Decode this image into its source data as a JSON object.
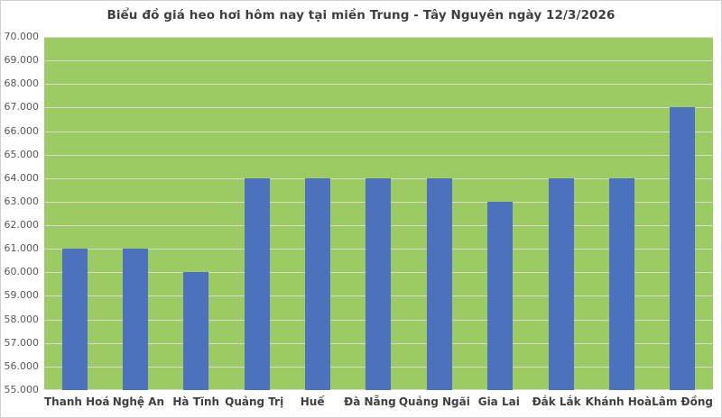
{
  "title": "Biểu đồ giá heo hơi hôm nay tại miền Trung - Tây Nguyên ngày 12/3/2026",
  "colors": {
    "bar": "#4C72BE",
    "plot_background": "#9CCB63",
    "gridline": "#d6ddc9",
    "title_text": "#3f3f3f",
    "y_axis_text": "#595959",
    "x_axis_text": "#404040",
    "frame_border": "#cfcfcf"
  },
  "chart_data": {
    "type": "bar",
    "title": "Biểu đồ giá heo hơi hôm nay tại miền Trung - Tây Nguyên ngày 12/3/2026",
    "categories": [
      "Thanh Hoá",
      "Nghệ An",
      "Hà Tĩnh",
      "Quảng Trị",
      "Huế",
      "Đà Nẵng",
      "Quảng Ngãi",
      "Gia Lai",
      "Đắk Lắk",
      "Khánh Hoà",
      "Lâm Đồng"
    ],
    "values": [
      61000,
      61000,
      60000,
      64000,
      64000,
      64000,
      64000,
      63000,
      64000,
      64000,
      67000
    ],
    "xlabel": "",
    "ylabel": "",
    "ylim": [
      55000,
      70000
    ],
    "ytick_step": 1000,
    "ytick_labels": [
      "70.000",
      "69.000",
      "68.000",
      "67.000",
      "66.000",
      "65.000",
      "64.000",
      "63.000",
      "62.000",
      "61.000",
      "60.000",
      "59.000",
      "58.000",
      "57.000",
      "56.000",
      "55.000"
    ],
    "grid": true,
    "legend_position": "none",
    "series_name": "Giá heo hơi"
  }
}
